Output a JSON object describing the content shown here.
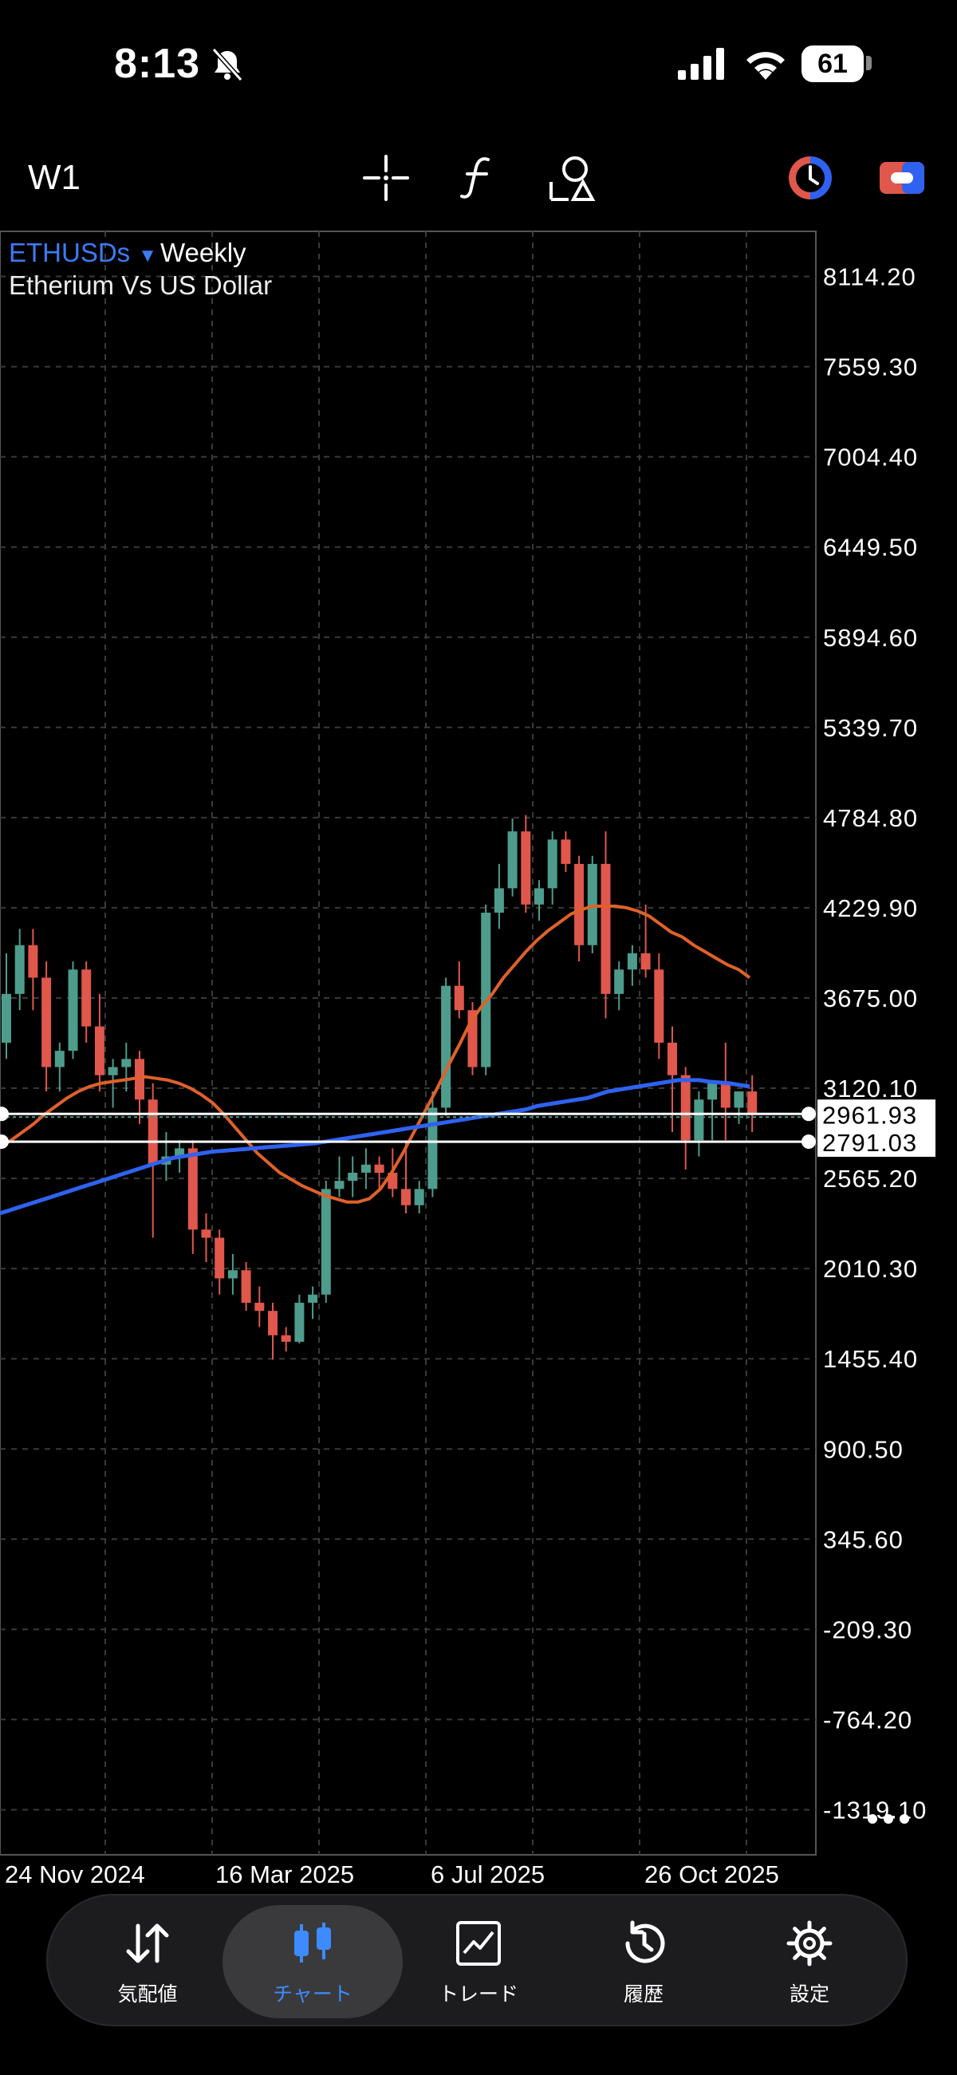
{
  "status_bar": {
    "time": "8:13",
    "battery": "61"
  },
  "toolbar": {
    "timeframe": "W1"
  },
  "chart_header": {
    "symbol": "ETHUSDs",
    "period": "Weekly",
    "description": "Etherium Vs US Dollar"
  },
  "colors": {
    "bull": "#4e9c8c",
    "bear": "#e0574b",
    "ma_fast": "#e0612a",
    "ma_slow": "#2f62f0",
    "accent": "#3d8bff"
  },
  "chart_data": {
    "type": "candlestick",
    "timeframe": "W1",
    "ylim": [
      -1596.55,
      8391.65
    ],
    "y_ticks": [
      "8114.20",
      "7559.30",
      "7004.40",
      "6449.50",
      "5894.60",
      "5339.70",
      "4784.80",
      "4229.90",
      "3675.00",
      "3120.10",
      "2565.20",
      "2010.30",
      "1455.40",
      "900.50",
      "345.60",
      "-209.30",
      "-764.20",
      "-1319.10"
    ],
    "x_ticks": [
      "24 Nov 2024",
      "16 Mar 2025",
      "6 Jul 2025",
      "26 Oct 2025"
    ],
    "price_lines": [
      {
        "label": "2961.93",
        "value": 2961.93
      },
      {
        "label": "2791.03",
        "value": 2791.03
      }
    ],
    "candles": [
      [
        3400,
        3950,
        3300,
        3700
      ],
      [
        3700,
        4100,
        3600,
        4000
      ],
      [
        4000,
        4100,
        3600,
        3800
      ],
      [
        3800,
        3900,
        3100,
        3250
      ],
      [
        3250,
        3400,
        3100,
        3350
      ],
      [
        3350,
        3900,
        3300,
        3850
      ],
      [
        3850,
        3900,
        3400,
        3500
      ],
      [
        3500,
        3700,
        3100,
        3200
      ],
      [
        3200,
        3300,
        3000,
        3250
      ],
      [
        3250,
        3400,
        3100,
        3300
      ],
      [
        3300,
        3350,
        2900,
        3050
      ],
      [
        3050,
        3150,
        2200,
        2650
      ],
      [
        2650,
        2850,
        2550,
        2700
      ],
      [
        2700,
        2800,
        2600,
        2750
      ],
      [
        2750,
        2800,
        2100,
        2250
      ],
      [
        2250,
        2350,
        2050,
        2200
      ],
      [
        2200,
        2250,
        1850,
        1950
      ],
      [
        1950,
        2100,
        1850,
        2000
      ],
      [
        2000,
        2050,
        1750,
        1800
      ],
      [
        1800,
        1900,
        1650,
        1750
      ],
      [
        1750,
        1800,
        1450,
        1600
      ],
      [
        1600,
        1650,
        1500,
        1560
      ],
      [
        1560,
        1850,
        1550,
        1800
      ],
      [
        1800,
        1900,
        1700,
        1850
      ],
      [
        1850,
        2550,
        1800,
        2500
      ],
      [
        2500,
        2700,
        2450,
        2550
      ],
      [
        2550,
        2700,
        2450,
        2600
      ],
      [
        2600,
        2750,
        2500,
        2650
      ],
      [
        2650,
        2700,
        2500,
        2600
      ],
      [
        2600,
        2750,
        2450,
        2500
      ],
      [
        2500,
        2800,
        2350,
        2400
      ],
      [
        2400,
        2550,
        2350,
        2500
      ],
      [
        2500,
        3100,
        2450,
        3000
      ],
      [
        3000,
        3800,
        2950,
        3750
      ],
      [
        3750,
        3900,
        3550,
        3600
      ],
      [
        3600,
        3650,
        3200,
        3250
      ],
      [
        3250,
        4250,
        3200,
        4200
      ],
      [
        4200,
        4500,
        4100,
        4350
      ],
      [
        4350,
        4780,
        4300,
        4700
      ],
      [
        4700,
        4800,
        4200,
        4250
      ],
      [
        4250,
        4400,
        4150,
        4350
      ],
      [
        4350,
        4700,
        4250,
        4650
      ],
      [
        4650,
        4700,
        4450,
        4500
      ],
      [
        4500,
        4550,
        3900,
        4000
      ],
      [
        4000,
        4550,
        3950,
        4500
      ],
      [
        4500,
        4700,
        3550,
        3700
      ],
      [
        3700,
        3900,
        3600,
        3850
      ],
      [
        3850,
        4000,
        3750,
        3950
      ],
      [
        3950,
        4250,
        3800,
        3850
      ],
      [
        3850,
        3950,
        3300,
        3400
      ],
      [
        3400,
        3500,
        2850,
        3200
      ],
      [
        3200,
        3250,
        2620,
        2800
      ],
      [
        2800,
        3100,
        2700,
        3050
      ],
      [
        3050,
        3150,
        2800,
        3150
      ],
      [
        3150,
        3400,
        2800,
        3000
      ],
      [
        3000,
        3100,
        2900,
        3100
      ],
      [
        3100,
        3200,
        2850,
        2962
      ]
    ],
    "series": [
      {
        "type": "moving-average",
        "values": [
          2760,
          2800,
          2850,
          2900,
          2960,
          3010,
          3060,
          3100,
          3130,
          3150,
          3160,
          3170,
          3180,
          3190,
          3180,
          3170,
          3150,
          3120,
          3080,
          3030,
          2960,
          2880,
          2800,
          2720,
          2660,
          2600,
          2560,
          2520,
          2490,
          2460,
          2440,
          2420,
          2420,
          2440,
          2500,
          2600,
          2720,
          2850,
          2980,
          3110,
          3250,
          3380,
          3520,
          3620,
          3700,
          3800,
          3880,
          3960,
          4030,
          4090,
          4140,
          4190,
          4220,
          4240,
          4240,
          4240,
          4230,
          4210,
          4180,
          4130,
          4080,
          4050,
          4000,
          3960,
          3920,
          3880,
          3850,
          3800
        ]
      },
      {
        "type": "moving-average",
        "values": [
          2350,
          2370,
          2390,
          2410,
          2430,
          2450,
          2470,
          2490,
          2510,
          2530,
          2550,
          2570,
          2590,
          2610,
          2630,
          2650,
          2670,
          2690,
          2700,
          2710,
          2720,
          2730,
          2735,
          2740,
          2745,
          2750,
          2755,
          2760,
          2765,
          2770,
          2775,
          2780,
          2790,
          2800,
          2810,
          2820,
          2830,
          2840,
          2850,
          2860,
          2870,
          2880,
          2890,
          2900,
          2910,
          2920,
          2930,
          2940,
          2950,
          2960,
          2970,
          2980,
          2990,
          3010,
          3020,
          3030,
          3040,
          3050,
          3060,
          3080,
          3100,
          3110,
          3120,
          3130,
          3140,
          3150,
          3160,
          3170,
          3170,
          3170,
          3160,
          3155,
          3150,
          3140,
          3130
        ]
      }
    ]
  },
  "nav": [
    {
      "label": "気配値",
      "icon": "arrows-updown-icon",
      "active": false
    },
    {
      "label": "チャート",
      "icon": "candlestick-icon",
      "active": true
    },
    {
      "label": "トレード",
      "icon": "trade-chart-icon",
      "active": false
    },
    {
      "label": "履歴",
      "icon": "history-icon",
      "active": false
    },
    {
      "label": "設定",
      "icon": "settings-gear-icon",
      "active": false
    }
  ]
}
